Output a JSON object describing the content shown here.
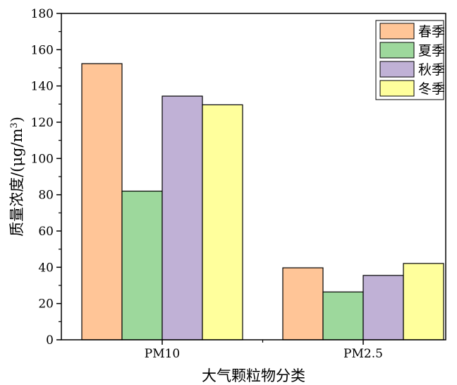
{
  "chart_data": {
    "type": "bar",
    "title": "",
    "xlabel": "大气颗粒物分类",
    "ylabel": "质量浓度/(μg/m³)",
    "ylabel_parts": {
      "main": "质量浓度/(μg/m",
      "sup": "3",
      "tail": ")"
    },
    "categories": [
      "PM10",
      "PM2.5"
    ],
    "ylim": [
      0,
      180
    ],
    "yticks": [
      0,
      20,
      40,
      60,
      80,
      100,
      120,
      140,
      160,
      180
    ],
    "legend_position": "top-right",
    "series": [
      {
        "name": "春季",
        "color": "#ffc597",
        "values": [
          152.3,
          39.7
        ]
      },
      {
        "name": "夏季",
        "color": "#9dd89c",
        "values": [
          82.0,
          26.4
        ]
      },
      {
        "name": "秋季",
        "color": "#c0b1d6",
        "values": [
          134.4,
          35.5
        ]
      },
      {
        "name": "冬季",
        "color": "#ffff9c",
        "values": [
          129.6,
          42.1
        ]
      }
    ]
  }
}
